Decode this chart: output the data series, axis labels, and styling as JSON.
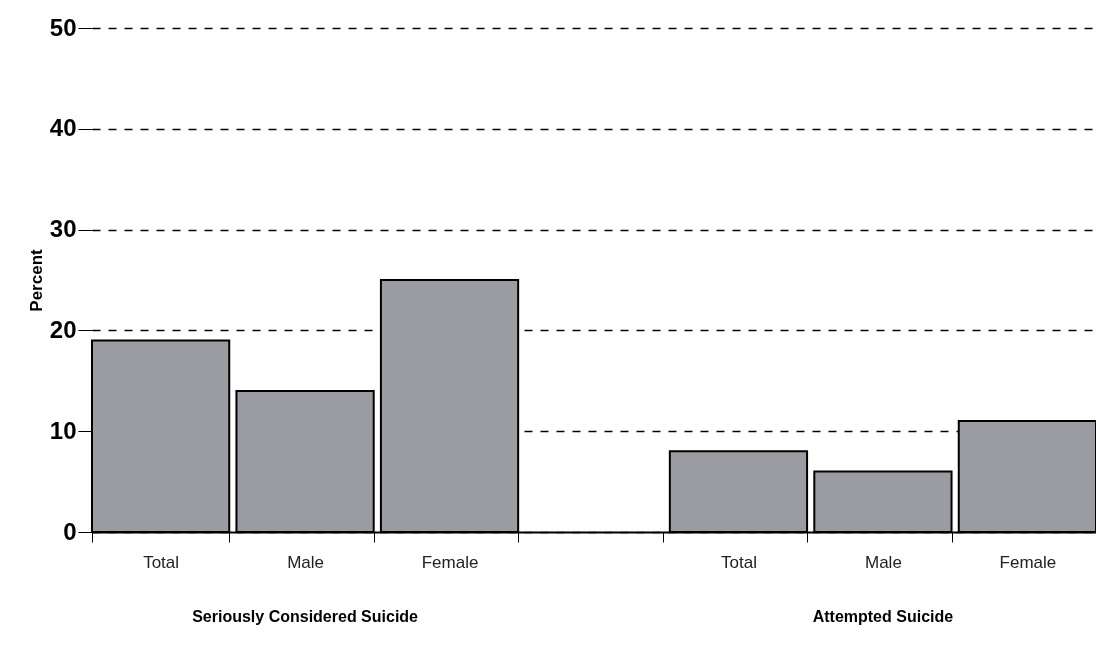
{
  "chart_data": {
    "type": "bar",
    "ylabel": "Percent",
    "categories": [
      "Total",
      "Male",
      "Female",
      null,
      "Total",
      "Male",
      "Female"
    ],
    "values": [
      19,
      14,
      25,
      null,
      8,
      6,
      11
    ],
    "color": "#9a9ca2",
    "ylim": [
      0,
      50
    ],
    "yticks": [
      0,
      10,
      20,
      30,
      40,
      50
    ],
    "grid": "y",
    "annotations": [
      "Seriously Considered Suicide",
      "Attempted Suicide"
    ]
  }
}
